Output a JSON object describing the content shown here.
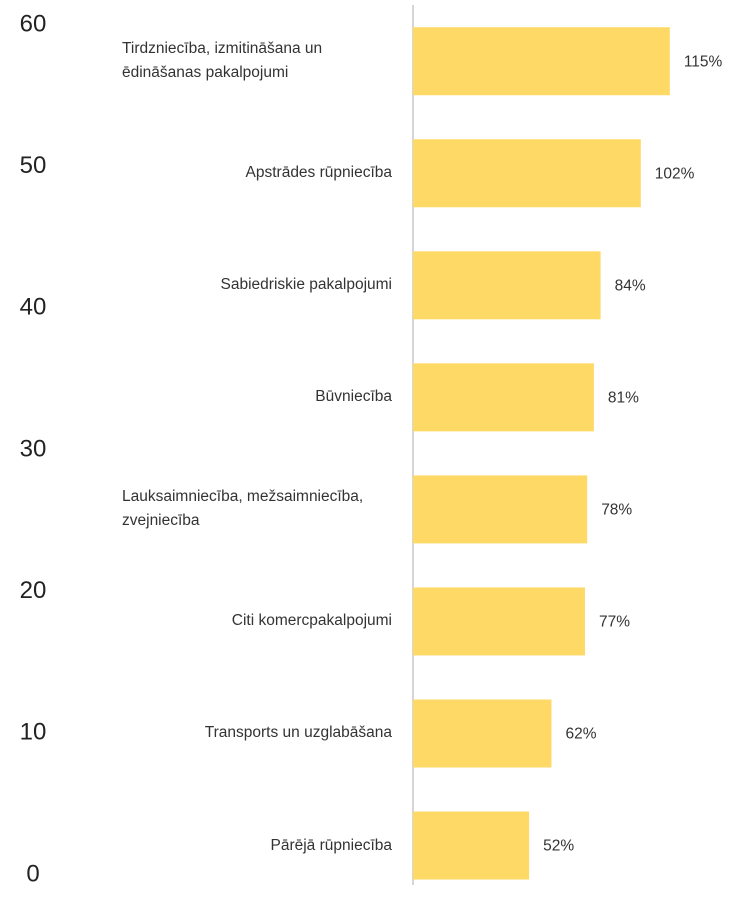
{
  "chart_data": {
    "type": "barh",
    "categories": [
      "Tirdzniecība, izmitināšana un ēdināšanas pakalpojumi",
      "Apstrādes rūpniecība",
      "Sabiedriskie pakalpojumi",
      "Būvniecība",
      "Lauksaimniecība, mežsaimniecība, zvejniecība",
      "Citi komercpakalpojumi",
      "Transports un uzglabāšana",
      "Pārējā rūpniecība"
    ],
    "values": [
      115,
      102,
      84,
      81,
      78,
      77,
      62,
      52
    ],
    "value_labels": [
      "115%",
      "102%",
      "84%",
      "81%",
      "78%",
      "77%",
      "62%",
      "52%"
    ],
    "color": "#ffd966",
    "xlim": [
      0,
      150
    ],
    "ylim": [
      0,
      60
    ],
    "yticks": [
      0,
      10,
      20,
      30,
      40,
      50,
      60
    ]
  }
}
